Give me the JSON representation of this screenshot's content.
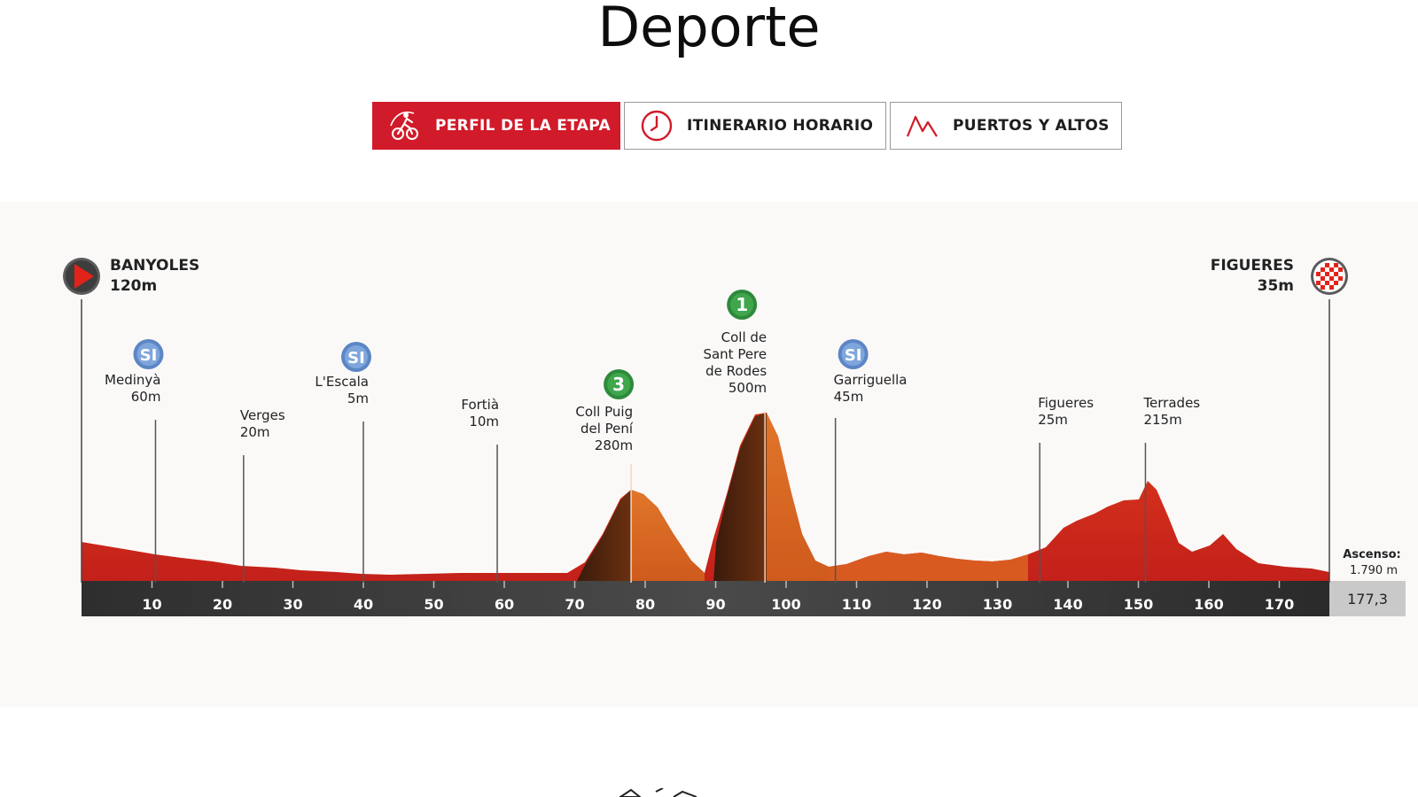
{
  "page": {
    "title": "Deporte"
  },
  "tabs": [
    {
      "label": "PERFIL DE LA ETAPA",
      "icon": "cyclist-icon",
      "active": true
    },
    {
      "label": "ITINERARIO HORARIO",
      "icon": "clock-icon",
      "active": false
    },
    {
      "label": "PUERTOS Y ALTOS",
      "icon": "mountain-icon",
      "active": false
    }
  ],
  "profile": {
    "start": {
      "name": "BANYOLES",
      "altitude": "120m",
      "icon": "start-flag-icon"
    },
    "finish": {
      "name": "FIGUERES",
      "altitude": "35m",
      "icon": "finish-flag-icon"
    },
    "ascent_label": "Ascenso:",
    "ascent_value": "1.790 m",
    "total_distance": "177,3",
    "distance_ticks": [
      "10",
      "20",
      "30",
      "40",
      "50",
      "60",
      "70",
      "80",
      "90",
      "100",
      "110",
      "120",
      "130",
      "140",
      "150",
      "160",
      "170"
    ],
    "points": [
      {
        "name": "Medinyà",
        "altitude": "60m",
        "km": 10.5,
        "badge": "SI"
      },
      {
        "name": "Verges",
        "altitude": "20m",
        "km": 23,
        "badge": ""
      },
      {
        "name": "L'Escala",
        "altitude": "5m",
        "km": 40,
        "badge": "SI"
      },
      {
        "name": "Fortià",
        "altitude": "10m",
        "km": 59,
        "badge": ""
      },
      {
        "name": "Coll Puig del Pení",
        "altitude": "280m",
        "km": 78,
        "badge": "3"
      },
      {
        "name": "Coll de Sant Pere de Rodes",
        "altitude": "500m",
        "km": 97,
        "badge": "1"
      },
      {
        "name": "Garriguella",
        "altitude": "45m",
        "km": 107,
        "badge": "SI"
      },
      {
        "name": "Figueres",
        "altitude": "25m",
        "km": 136,
        "badge": ""
      },
      {
        "name": "Terrades",
        "altitude": "215m",
        "km": 151,
        "badge": ""
      }
    ]
  }
}
